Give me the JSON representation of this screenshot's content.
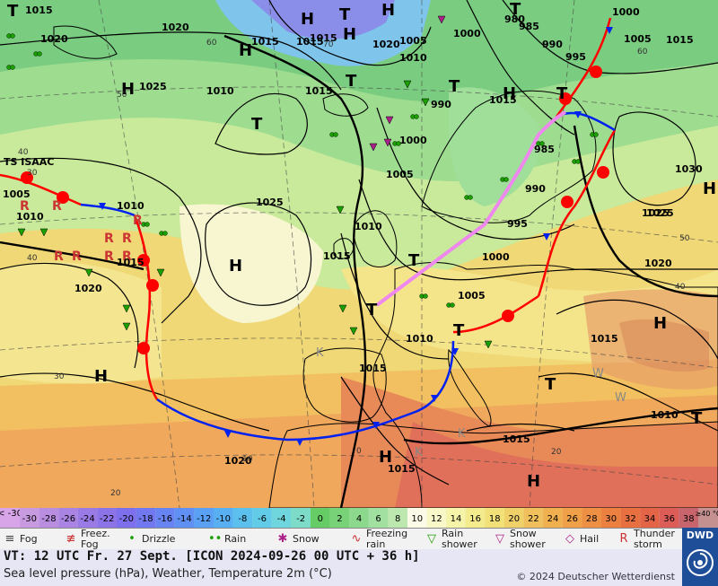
{
  "map": {
    "isobar_labels": [
      {
        "text": "1015"
      },
      {
        "text": "1020"
      },
      {
        "text": "1020"
      },
      {
        "text": "1015"
      },
      {
        "text": "1015"
      },
      {
        "text": "1025"
      },
      {
        "text": "1020"
      },
      {
        "text": "1015"
      },
      {
        "text": "1005"
      },
      {
        "text": "1000"
      },
      {
        "text": "980"
      },
      {
        "text": "985"
      },
      {
        "text": "990"
      },
      {
        "text": "995"
      },
      {
        "text": "1000"
      },
      {
        "text": "1005"
      },
      {
        "text": "1015"
      },
      {
        "text": "1025"
      },
      {
        "text": "1015"
      },
      {
        "text": "1010"
      },
      {
        "text": "990"
      },
      {
        "text": "1000"
      },
      {
        "text": "1005"
      },
      {
        "text": "985"
      },
      {
        "text": "990"
      },
      {
        "text": "995"
      },
      {
        "text": "1030"
      },
      {
        "text": "1025"
      },
      {
        "text": "1020"
      },
      {
        "text": "1015"
      },
      {
        "text": "1010"
      },
      {
        "text": "1015"
      },
      {
        "text": "1025"
      },
      {
        "text": "1010"
      },
      {
        "text": "1015"
      },
      {
        "text": "1010"
      },
      {
        "text": "1015"
      },
      {
        "text": "1005"
      },
      {
        "text": "1010"
      },
      {
        "text": "1020"
      },
      {
        "text": "1010"
      },
      {
        "text": "1015"
      },
      {
        "text": "1020"
      },
      {
        "text": "1015"
      },
      {
        "text": "1000"
      },
      {
        "text": "1005"
      },
      {
        "text": "1010"
      },
      {
        "text": "1015"
      }
    ],
    "pressure_centers": [
      {
        "text": "H"
      },
      {
        "text": "H"
      },
      {
        "text": "H"
      },
      {
        "text": "H"
      },
      {
        "text": "H"
      },
      {
        "text": "H"
      },
      {
        "text": "H"
      },
      {
        "text": "H"
      },
      {
        "text": "H"
      },
      {
        "text": "H"
      },
      {
        "text": "T"
      },
      {
        "text": "T"
      },
      {
        "text": "T"
      },
      {
        "text": "T"
      },
      {
        "text": "T"
      },
      {
        "text": "T"
      },
      {
        "text": "T"
      },
      {
        "text": "T"
      },
      {
        "text": "T"
      },
      {
        "text": "T"
      },
      {
        "text": "T"
      },
      {
        "text": "H"
      },
      {
        "text": "H"
      },
      {
        "text": "T"
      }
    ],
    "storm_label": "TS ISAAC",
    "grid_labels": [
      "40",
      "50",
      "60",
      "70",
      "30",
      "20",
      "10",
      "0",
      "40",
      "50",
      "60",
      "20",
      "40",
      "30"
    ],
    "overlay_letters": [
      "K",
      "K",
      "W",
      "W",
      "K"
    ]
  },
  "scale": {
    "under_label": "< -30",
    "over_label": "≥40 °C",
    "steps": [
      {
        "label": "-30",
        "color": "#c89ae0"
      },
      {
        "label": "-28",
        "color": "#b98ee0"
      },
      {
        "label": "-26",
        "color": "#aa84e2"
      },
      {
        "label": "-24",
        "color": "#9a7ae4"
      },
      {
        "label": "-22",
        "color": "#8c74e8"
      },
      {
        "label": "-20",
        "color": "#7e70ec"
      },
      {
        "label": "-18",
        "color": "#7278f0"
      },
      {
        "label": "-16",
        "color": "#6884f2"
      },
      {
        "label": "-14",
        "color": "#6090f4"
      },
      {
        "label": "-12",
        "color": "#5aa0f4"
      },
      {
        "label": "-10",
        "color": "#58b0f2"
      },
      {
        "label": "-8",
        "color": "#5cc0ee"
      },
      {
        "label": "-6",
        "color": "#62cce8"
      },
      {
        "label": "-4",
        "color": "#6ed6dc"
      },
      {
        "label": "-2",
        "color": "#7cdcc8"
      },
      {
        "label": "0",
        "color": "#66cc66"
      },
      {
        "label": "2",
        "color": "#78d278"
      },
      {
        "label": "4",
        "color": "#8cd88c"
      },
      {
        "label": "6",
        "color": "#a2e0a2"
      },
      {
        "label": "8",
        "color": "#bce8b0"
      },
      {
        "label": "10",
        "color": "#fbfbe8"
      },
      {
        "label": "12",
        "color": "#f8f8c8"
      },
      {
        "label": "14",
        "color": "#f6f4a8"
      },
      {
        "label": "16",
        "color": "#f4ec8c"
      },
      {
        "label": "18",
        "color": "#f2e078"
      },
      {
        "label": "20",
        "color": "#f0d068"
      },
      {
        "label": "22",
        "color": "#f0c05c"
      },
      {
        "label": "24",
        "color": "#f0b050"
      },
      {
        "label": "26",
        "color": "#f0a048"
      },
      {
        "label": "28",
        "color": "#ee9044"
      },
      {
        "label": "30",
        "color": "#ec8040"
      },
      {
        "label": "32",
        "color": "#e87040"
      },
      {
        "label": "34",
        "color": "#e46448"
      },
      {
        "label": "36",
        "color": "#dc5c58"
      },
      {
        "label": "38",
        "color": "#c8646c"
      }
    ]
  },
  "legend": [
    {
      "label": "Fog",
      "icon": "fog-icon"
    },
    {
      "label": "Freez.\nFog",
      "icon": "freezing-fog-icon"
    },
    {
      "label": "Drizzle",
      "icon": "drizzle-icon"
    },
    {
      "label": "Rain",
      "icon": "rain-icon"
    },
    {
      "label": "Snow",
      "icon": "snow-icon"
    },
    {
      "label": "Freezing\nrain",
      "icon": "freezing-rain-icon"
    },
    {
      "label": "Rain\nshower",
      "icon": "rain-shower-icon"
    },
    {
      "label": "Snow\nshower",
      "icon": "snow-shower-icon"
    },
    {
      "label": "Hail",
      "icon": "hail-icon"
    },
    {
      "label": "Thunder\nstorm",
      "icon": "thunderstorm-icon"
    }
  ],
  "info": {
    "valid_time": "VT: 12 UTC Fr. 27 Sept. [ICON 2024-09-26 00 UTC + 36 h]",
    "description": "Sea level pressure (hPa), Weather, Temperature 2m (°C)",
    "copyright": "© 2024 Deutscher Wetterdienst"
  },
  "logo": {
    "text": "DWD"
  },
  "colors": {
    "warm_front": "#ff0000",
    "cold_front": "#0022ee",
    "occlusion": "#ee88ee",
    "isobar": "#000000"
  }
}
